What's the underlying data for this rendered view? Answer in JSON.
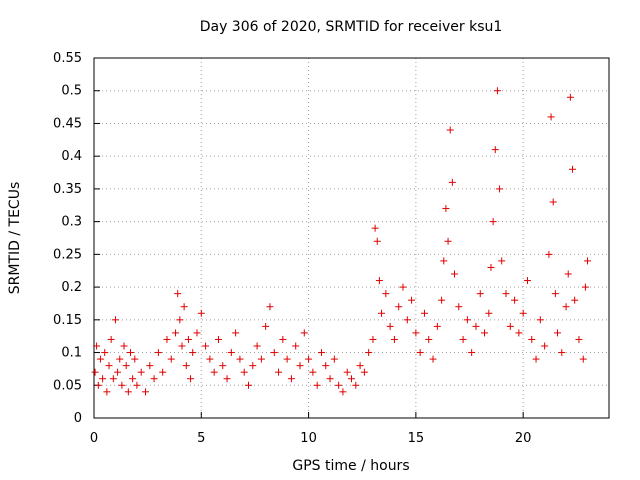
{
  "chart_data": {
    "type": "scatter",
    "title": "Day 306 of 2020, SRMTID for receiver ksu1",
    "xlabel": "GPS time / hours",
    "ylabel": "SRMTID / TECUs",
    "xlim": [
      0,
      24
    ],
    "ylim": [
      0,
      0.55
    ],
    "xticks": [
      0,
      5,
      10,
      15,
      20
    ],
    "yticks": [
      0,
      0.05,
      0.1,
      0.15,
      0.2,
      0.25,
      0.3,
      0.35,
      0.4,
      0.45,
      0.5,
      0.55
    ],
    "xtick_labels": [
      "0",
      "5",
      "10",
      "15",
      "20"
    ],
    "ytick_labels": [
      "0",
      "0.05",
      "0.1",
      "0.15",
      "0.2",
      "0.25",
      "0.3",
      "0.35",
      "0.4",
      "0.45",
      "0.5",
      "0.55"
    ],
    "grid": true,
    "marker": "+",
    "color": "#e00000",
    "series": [
      {
        "name": "SRMTID",
        "points": [
          [
            0.05,
            0.07
          ],
          [
            0.12,
            0.11
          ],
          [
            0.2,
            0.05
          ],
          [
            0.3,
            0.09
          ],
          [
            0.4,
            0.06
          ],
          [
            0.5,
            0.1
          ],
          [
            0.6,
            0.04
          ],
          [
            0.7,
            0.08
          ],
          [
            0.8,
            0.12
          ],
          [
            0.9,
            0.06
          ],
          [
            1.0,
            0.15
          ],
          [
            1.1,
            0.07
          ],
          [
            1.2,
            0.09
          ],
          [
            1.3,
            0.05
          ],
          [
            1.4,
            0.11
          ],
          [
            1.5,
            0.08
          ],
          [
            1.6,
            0.04
          ],
          [
            1.7,
            0.1
          ],
          [
            1.8,
            0.06
          ],
          [
            1.9,
            0.09
          ],
          [
            2.0,
            0.05
          ],
          [
            2.2,
            0.07
          ],
          [
            2.4,
            0.04
          ],
          [
            2.6,
            0.08
          ],
          [
            2.8,
            0.06
          ],
          [
            3.0,
            0.1
          ],
          [
            3.2,
            0.07
          ],
          [
            3.4,
            0.12
          ],
          [
            3.6,
            0.09
          ],
          [
            3.8,
            0.13
          ],
          [
            3.9,
            0.19
          ],
          [
            4.0,
            0.15
          ],
          [
            4.1,
            0.11
          ],
          [
            4.2,
            0.17
          ],
          [
            4.3,
            0.08
          ],
          [
            4.4,
            0.12
          ],
          [
            4.5,
            0.06
          ],
          [
            4.6,
            0.1
          ],
          [
            4.8,
            0.13
          ],
          [
            5.0,
            0.16
          ],
          [
            5.2,
            0.11
          ],
          [
            5.4,
            0.09
          ],
          [
            5.6,
            0.07
          ],
          [
            5.8,
            0.12
          ],
          [
            6.0,
            0.08
          ],
          [
            6.2,
            0.06
          ],
          [
            6.4,
            0.1
          ],
          [
            6.6,
            0.13
          ],
          [
            6.8,
            0.09
          ],
          [
            7.0,
            0.07
          ],
          [
            7.2,
            0.05
          ],
          [
            7.4,
            0.08
          ],
          [
            7.6,
            0.11
          ],
          [
            7.8,
            0.09
          ],
          [
            8.0,
            0.14
          ],
          [
            8.2,
            0.17
          ],
          [
            8.4,
            0.1
          ],
          [
            8.6,
            0.07
          ],
          [
            8.8,
            0.12
          ],
          [
            9.0,
            0.09
          ],
          [
            9.2,
            0.06
          ],
          [
            9.4,
            0.11
          ],
          [
            9.6,
            0.08
          ],
          [
            9.8,
            0.13
          ],
          [
            10.0,
            0.09
          ],
          [
            10.2,
            0.07
          ],
          [
            10.4,
            0.05
          ],
          [
            10.6,
            0.1
          ],
          [
            10.8,
            0.08
          ],
          [
            11.0,
            0.06
          ],
          [
            11.2,
            0.09
          ],
          [
            11.4,
            0.05
          ],
          [
            11.6,
            0.04
          ],
          [
            11.8,
            0.07
          ],
          [
            12.0,
            0.06
          ],
          [
            12.2,
            0.05
          ],
          [
            12.4,
            0.08
          ],
          [
            12.6,
            0.07
          ],
          [
            12.8,
            0.1
          ],
          [
            13.0,
            0.12
          ],
          [
            13.1,
            0.29
          ],
          [
            13.2,
            0.27
          ],
          [
            13.3,
            0.21
          ],
          [
            13.4,
            0.16
          ],
          [
            13.6,
            0.19
          ],
          [
            13.8,
            0.14
          ],
          [
            14.0,
            0.12
          ],
          [
            14.2,
            0.17
          ],
          [
            14.4,
            0.2
          ],
          [
            14.6,
            0.15
          ],
          [
            14.8,
            0.18
          ],
          [
            15.0,
            0.13
          ],
          [
            15.2,
            0.1
          ],
          [
            15.4,
            0.16
          ],
          [
            15.6,
            0.12
          ],
          [
            15.8,
            0.09
          ],
          [
            16.0,
            0.14
          ],
          [
            16.2,
            0.18
          ],
          [
            16.3,
            0.24
          ],
          [
            16.4,
            0.32
          ],
          [
            16.5,
            0.27
          ],
          [
            16.6,
            0.44
          ],
          [
            16.7,
            0.36
          ],
          [
            16.8,
            0.22
          ],
          [
            17.0,
            0.17
          ],
          [
            17.2,
            0.12
          ],
          [
            17.4,
            0.15
          ],
          [
            17.6,
            0.1
          ],
          [
            17.8,
            0.14
          ],
          [
            18.0,
            0.19
          ],
          [
            18.2,
            0.13
          ],
          [
            18.4,
            0.16
          ],
          [
            18.5,
            0.23
          ],
          [
            18.6,
            0.3
          ],
          [
            18.7,
            0.41
          ],
          [
            18.8,
            0.5
          ],
          [
            18.9,
            0.35
          ],
          [
            19.0,
            0.24
          ],
          [
            19.2,
            0.19
          ],
          [
            19.4,
            0.14
          ],
          [
            19.6,
            0.18
          ],
          [
            19.8,
            0.13
          ],
          [
            20.0,
            0.16
          ],
          [
            20.2,
            0.21
          ],
          [
            20.4,
            0.12
          ],
          [
            20.6,
            0.09
          ],
          [
            20.8,
            0.15
          ],
          [
            21.0,
            0.11
          ],
          [
            21.2,
            0.25
          ],
          [
            21.3,
            0.46
          ],
          [
            21.4,
            0.33
          ],
          [
            21.5,
            0.19
          ],
          [
            21.6,
            0.13
          ],
          [
            21.8,
            0.1
          ],
          [
            22.0,
            0.17
          ],
          [
            22.1,
            0.22
          ],
          [
            22.2,
            0.49
          ],
          [
            22.3,
            0.38
          ],
          [
            22.4,
            0.18
          ],
          [
            22.6,
            0.12
          ],
          [
            22.8,
            0.09
          ],
          [
            22.9,
            0.2
          ],
          [
            23.0,
            0.24
          ]
        ]
      }
    ]
  }
}
